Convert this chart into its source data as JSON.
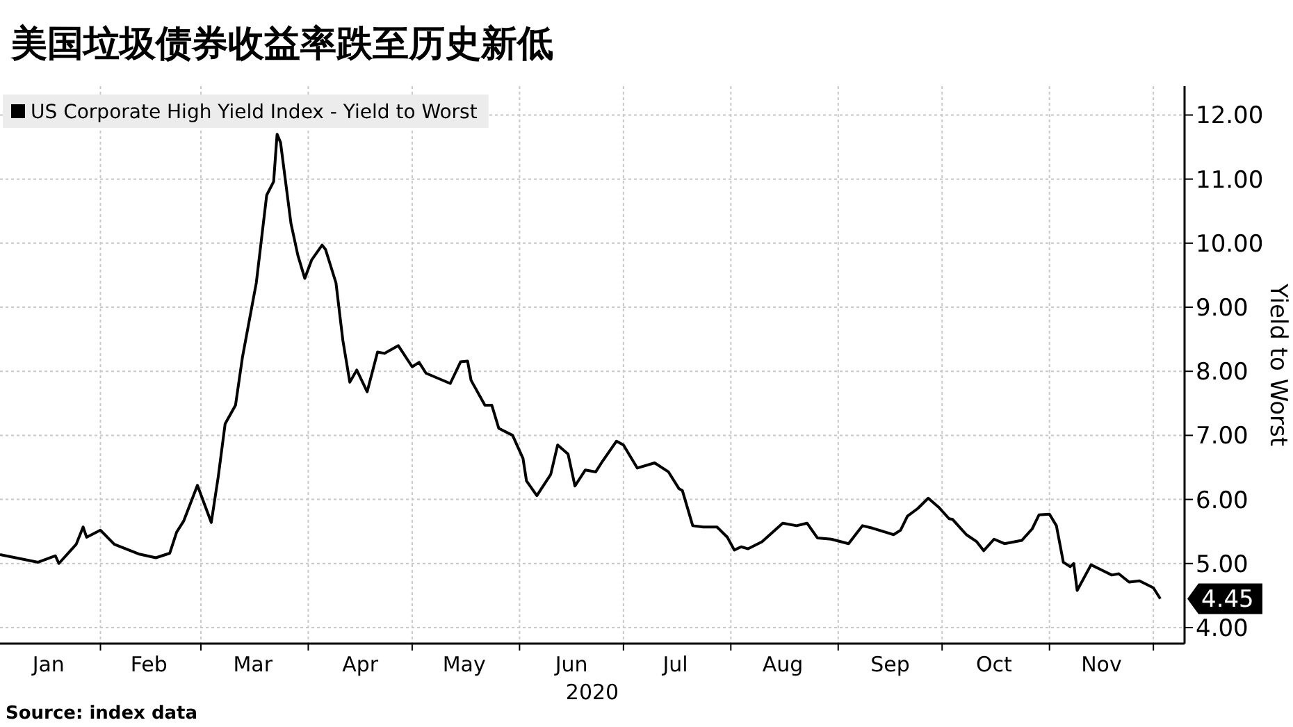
{
  "chart_data": {
    "type": "line",
    "title": "美国垃圾债券收益率跌至历史新低",
    "xlabel": "2020",
    "ylabel": "Yield to Worst",
    "x": [
      "2020-01-03",
      "2020-01-14",
      "2020-01-19",
      "2020-01-20",
      "2020-01-25",
      "2020-01-27",
      "2020-01-28",
      "2020-02-01",
      "2020-02-05",
      "2020-02-12",
      "2020-02-17",
      "2020-02-21",
      "2020-02-23",
      "2020-02-25",
      "2020-02-29",
      "2020-03-04",
      "2020-03-06",
      "2020-03-08",
      "2020-03-11",
      "2020-03-13",
      "2020-03-16",
      "2020-03-17",
      "2020-03-20",
      "2020-03-22",
      "2020-03-23",
      "2020-03-24",
      "2020-03-27",
      "2020-03-29",
      "2020-03-31",
      "2020-04-02",
      "2020-04-05",
      "2020-04-06",
      "2020-04-09",
      "2020-04-11",
      "2020-04-13",
      "2020-04-15",
      "2020-04-18",
      "2020-04-21",
      "2020-04-23",
      "2020-04-27",
      "2020-05-01",
      "2020-05-03",
      "2020-05-05",
      "2020-05-12",
      "2020-05-15",
      "2020-05-17",
      "2020-05-18",
      "2020-05-22",
      "2020-05-24",
      "2020-05-26",
      "2020-05-30",
      "2020-06-02",
      "2020-06-03",
      "2020-06-06",
      "2020-06-10",
      "2020-06-12",
      "2020-06-15",
      "2020-06-17",
      "2020-06-20",
      "2020-06-23",
      "2020-06-25",
      "2020-06-29",
      "2020-07-01",
      "2020-07-05",
      "2020-07-10",
      "2020-07-14",
      "2020-07-17",
      "2020-07-18",
      "2020-07-21",
      "2020-07-24",
      "2020-07-28",
      "2020-07-31",
      "2020-08-02",
      "2020-08-04",
      "2020-08-06",
      "2020-08-10",
      "2020-08-16",
      "2020-08-20",
      "2020-08-23",
      "2020-08-26",
      "2020-08-30",
      "2020-09-04",
      "2020-09-08",
      "2020-09-11",
      "2020-09-17",
      "2020-09-19",
      "2020-09-21",
      "2020-09-24",
      "2020-09-27",
      "2020-09-30",
      "2020-10-03",
      "2020-10-04",
      "2020-10-08",
      "2020-10-11",
      "2020-10-13",
      "2020-10-16",
      "2020-10-19",
      "2020-10-24",
      "2020-10-27",
      "2020-10-29",
      "2020-11-01",
      "2020-11-03",
      "2020-11-05",
      "2020-11-07",
      "2020-11-08",
      "2020-11-09",
      "2020-11-13",
      "2020-11-16",
      "2020-11-19",
      "2020-11-21",
      "2020-11-24",
      "2020-11-27",
      "2020-12-01",
      "2020-12-03"
    ],
    "series": [
      {
        "name": "US Corporate High Yield Index - Yield to Worst",
        "color": "#000000",
        "values": [
          5.14,
          5.02,
          5.12,
          5.0,
          5.3,
          5.57,
          5.41,
          5.52,
          5.3,
          5.15,
          5.09,
          5.16,
          5.49,
          5.66,
          6.22,
          5.64,
          6.35,
          7.18,
          7.47,
          8.22,
          9.09,
          9.38,
          10.75,
          10.96,
          11.7,
          11.57,
          10.31,
          9.81,
          9.45,
          9.74,
          9.97,
          9.9,
          9.38,
          8.48,
          7.83,
          8.02,
          7.68,
          8.3,
          8.28,
          8.4,
          8.07,
          8.14,
          7.97,
          7.81,
          8.15,
          8.16,
          7.86,
          7.47,
          7.47,
          7.11,
          7.0,
          6.64,
          6.29,
          6.06,
          6.39,
          6.85,
          6.71,
          6.21,
          6.46,
          6.43,
          6.6,
          6.91,
          6.85,
          6.49,
          6.57,
          6.43,
          6.17,
          6.14,
          5.59,
          5.57,
          5.57,
          5.41,
          5.21,
          5.26,
          5.23,
          5.34,
          5.63,
          5.59,
          5.63,
          5.4,
          5.38,
          5.31,
          5.59,
          5.55,
          5.45,
          5.52,
          5.74,
          5.86,
          6.02,
          5.88,
          5.7,
          5.69,
          5.45,
          5.34,
          5.2,
          5.38,
          5.31,
          5.36,
          5.54,
          5.76,
          5.77,
          5.59,
          5.02,
          4.95,
          5.0,
          4.58,
          4.98,
          4.9,
          4.82,
          4.84,
          4.71,
          4.73,
          4.62,
          4.45
        ]
      }
    ],
    "xlim": [
      "2020-01-03",
      "2020-12-10"
    ],
    "xticks": [
      {
        "value": "2020-01-17",
        "label": "Jan"
      },
      {
        "value": "2020-02-01",
        "label": null
      },
      {
        "value": "2020-02-15",
        "label": "Feb"
      },
      {
        "value": "2020-03-01",
        "label": null
      },
      {
        "value": "2020-03-16",
        "label": "Mar"
      },
      {
        "value": "2020-04-01",
        "label": null
      },
      {
        "value": "2020-04-16",
        "label": "Apr"
      },
      {
        "value": "2020-05-01",
        "label": null
      },
      {
        "value": "2020-05-16",
        "label": "May"
      },
      {
        "value": "2020-06-01",
        "label": null
      },
      {
        "value": "2020-06-16",
        "label": "Jun"
      },
      {
        "value": "2020-07-01",
        "label": null
      },
      {
        "value": "2020-07-16",
        "label": "Jul"
      },
      {
        "value": "2020-08-01",
        "label": null
      },
      {
        "value": "2020-08-16",
        "label": "Aug"
      },
      {
        "value": "2020-09-01",
        "label": null
      },
      {
        "value": "2020-09-16",
        "label": "Sep"
      },
      {
        "value": "2020-10-01",
        "label": null
      },
      {
        "value": "2020-10-16",
        "label": "Oct"
      },
      {
        "value": "2020-11-01",
        "label": null
      },
      {
        "value": "2020-11-16",
        "label": "Nov"
      },
      {
        "value": "2020-12-01",
        "label": null
      }
    ],
    "ylim": [
      3.75,
      12.45
    ],
    "yticks": [
      {
        "value": 4,
        "label": "4.00"
      },
      {
        "value": 5,
        "label": "5.00"
      },
      {
        "value": 6,
        "label": "6.00"
      },
      {
        "value": 7,
        "label": "7.00"
      },
      {
        "value": 8,
        "label": "8.00"
      },
      {
        "value": 9,
        "label": "9.00"
      },
      {
        "value": 10,
        "label": "10.00"
      },
      {
        "value": 11,
        "label": "11.00"
      },
      {
        "value": 12,
        "label": "12.00"
      }
    ],
    "grid": true,
    "legend": "top left",
    "marker": "none",
    "line_style": "solid",
    "annotations": [
      {
        "text": "4.45",
        "x": "2020-12-03",
        "y": 4.45
      },
      "**Source: index data**"
    ]
  }
}
